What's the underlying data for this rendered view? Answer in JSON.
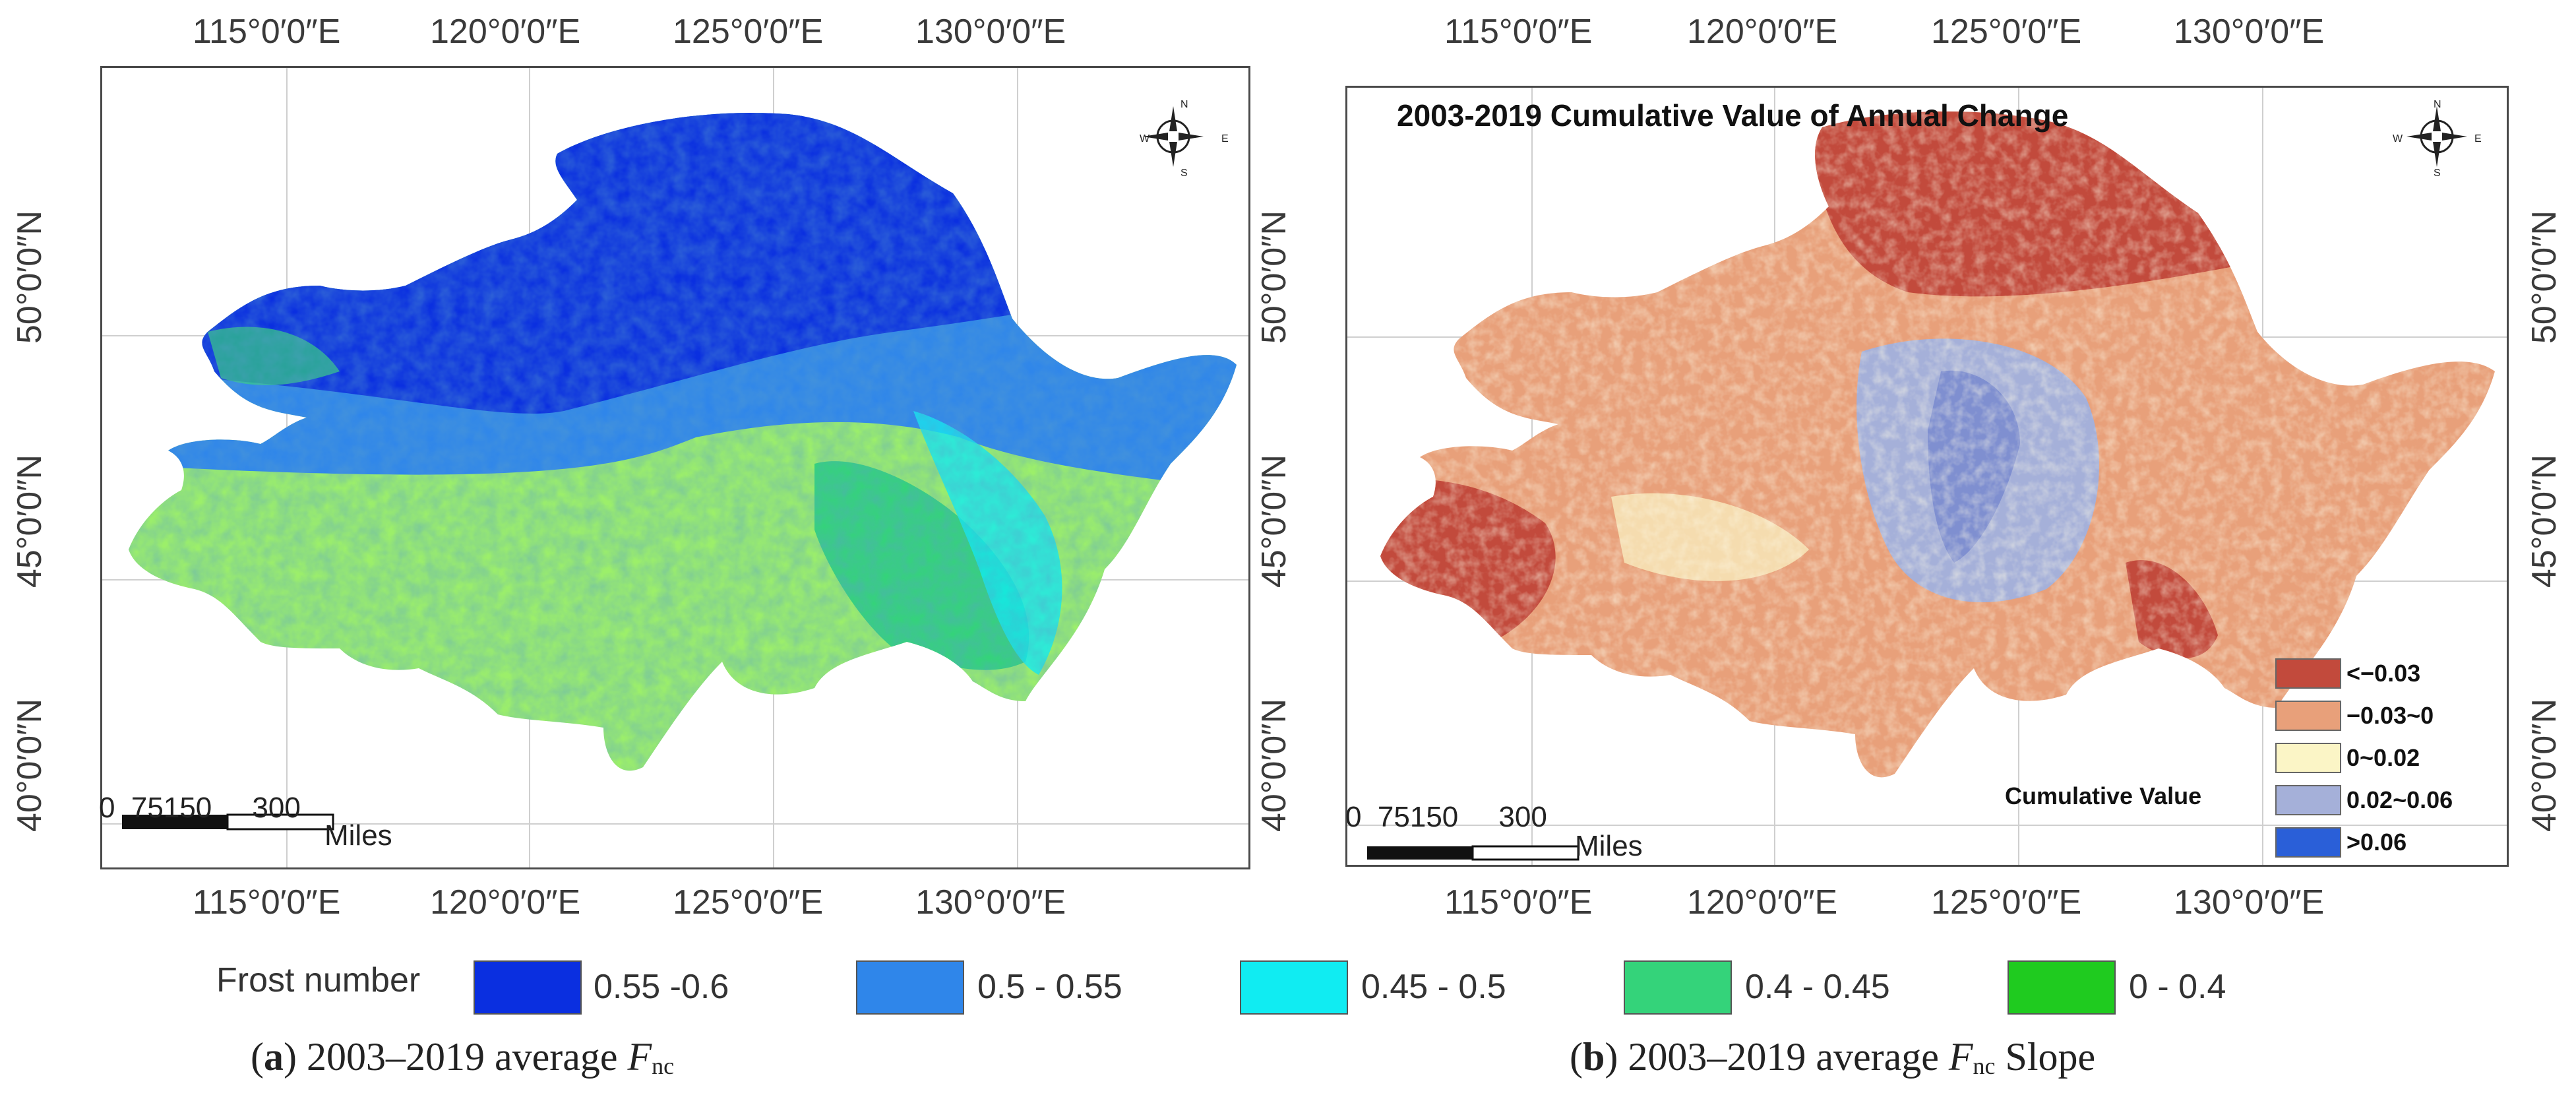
{
  "panel_a": {
    "top_ticks": [
      "115°0′0″E",
      "120°0′0″E",
      "125°0′0″E",
      "130°0′0″E"
    ],
    "bottom_ticks": [
      "115°0′0″E",
      "120°0′0″E",
      "125°0′0″E",
      "130°0′0″E"
    ],
    "left_ticks": [
      "50°0′0″N",
      "45°0′0″N",
      "40°0′0″N"
    ],
    "scale_numbers": "0  75150     300",
    "scale_unit": "Miles",
    "compass": {
      "n": "N",
      "s": "S",
      "e": "E",
      "w": "W"
    },
    "caption": {
      "letter": "a",
      "text": " 2003–2019 average ",
      "var": "F",
      "sub": "nc",
      "suffix": ""
    }
  },
  "panel_b": {
    "title": "2003-2019 Cumulative Value of Annual Change",
    "top_ticks": [
      "115°0′0″E",
      "120°0′0″E",
      "125°0′0″E",
      "130°0′0″E"
    ],
    "bottom_ticks": [
      "115°0′0″E",
      "120°0′0″E",
      "125°0′0″E",
      "130°0′0″E"
    ],
    "right_ticks": [
      "50°0′0″N",
      "45°0′0″N",
      "40°0′0″N"
    ],
    "scale_numbers": "0  75150     300",
    "scale_unit": "Miles",
    "compass": {
      "n": "N",
      "s": "S",
      "e": "E",
      "w": "W"
    },
    "legend_title": "Cumulative Value",
    "legend_items": [
      {
        "label": "<−0.03",
        "color": "#c24a3c"
      },
      {
        "label": "−0.03~0",
        "color": "#e8a07a"
      },
      {
        "label": "0~0.02",
        "color": "#fbf5c6"
      },
      {
        "label": "0.02~0.06",
        "color": "#a5b0d9"
      },
      {
        "label": ">0.06",
        "color": "#2a5fd8"
      }
    ],
    "caption": {
      "letter": "b",
      "text": " 2003–2019 average ",
      "var": "F",
      "sub": "nc",
      "suffix": " Slope"
    }
  },
  "frost_legend": {
    "title": "Frost number",
    "items": [
      {
        "label": "0.55 -0.6",
        "color": "#0a2fe0"
      },
      {
        "label": "0.5 - 0.55",
        "color": "#2f86ea"
      },
      {
        "label": "0.45 - 0.5",
        "color": "#10ecf2"
      },
      {
        "label": "0.4 - 0.45",
        "color": "#34d37a"
      },
      {
        "label": "0 - 0.4",
        "color": "#1fcb1f"
      }
    ]
  },
  "colors": {
    "frame": "#4a4a4a",
    "graticule": "#cfcfcf",
    "panel_a_fill_low": "#9cef6a"
  }
}
